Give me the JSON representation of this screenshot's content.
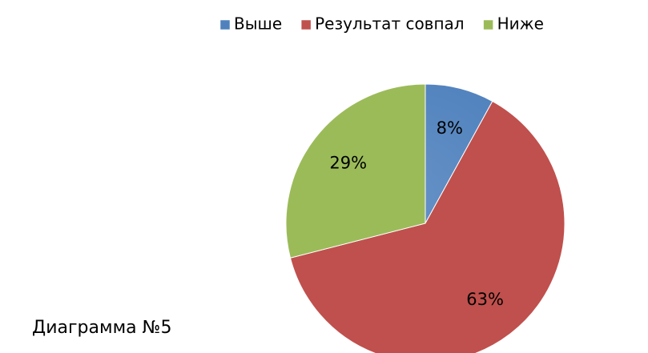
{
  "chart_data": {
    "type": "pie",
    "categories": [
      "Выше",
      "Результат совпал",
      "Ниже"
    ],
    "values": [
      8,
      63,
      29
    ],
    "value_labels": [
      "8%",
      "63%",
      "29%"
    ],
    "colors": [
      "#4f81bd",
      "#c0504d",
      "#9bbb59"
    ],
    "legend": "top",
    "caption": "Диаграмма №5"
  }
}
